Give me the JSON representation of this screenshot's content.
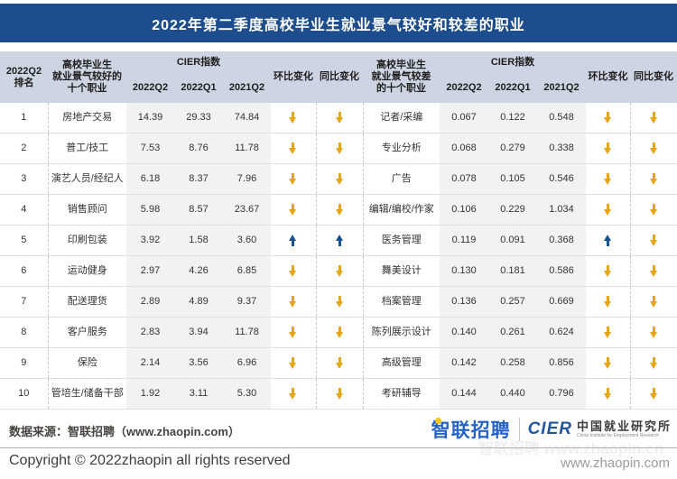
{
  "colors": {
    "title-bar-bg": "#1D4D8C",
    "header-bg": "#CDD5E3",
    "stripe-bg": "#F2F2F2",
    "row-border": "#E0E0E0",
    "dashed-border": "#C8C8C8",
    "arrow-down": "#E4A61A",
    "arrow-up": "#17518F",
    "logo-blue": "#2563C9",
    "logo-yellow": "#F5C518",
    "cier-blue": "#2456A0",
    "text-dark": "#333333",
    "text-gray": "#9B9B9B"
  },
  "chart_data": {
    "type": "table",
    "title": "2022年第二季度高校毕业生就业景气较好和较差的职业",
    "header": {
      "rank_label": "2022Q2\n排名",
      "good_occupation_label": "高校毕业生\n就业景气较好的\n十个职业",
      "bad_occupation_label": "高校毕业生\n就业景气较差\n的十个职业",
      "cier_index_label": "CIER指数",
      "quarter_cols": [
        "2022Q2",
        "2022Q1",
        "2021Q2"
      ],
      "mom_label": "环比变化",
      "yoy_label": "同比变化"
    },
    "rows": [
      {
        "rank": "1",
        "good": {
          "name": "房地产交易",
          "cier": [
            "14.39",
            "29.33",
            "74.84"
          ],
          "mom": "down",
          "yoy": "down"
        },
        "bad": {
          "name": "记者/采编",
          "cier": [
            "0.067",
            "0.122",
            "0.548"
          ],
          "mom": "down",
          "yoy": "down"
        }
      },
      {
        "rank": "2",
        "good": {
          "name": "普工/技工",
          "cier": [
            "7.53",
            "8.76",
            "11.78"
          ],
          "mom": "down",
          "yoy": "down"
        },
        "bad": {
          "name": "专业分析",
          "cier": [
            "0.068",
            "0.279",
            "0.338"
          ],
          "mom": "down",
          "yoy": "down"
        }
      },
      {
        "rank": "3",
        "good": {
          "name": "演艺人员/经纪人",
          "cier": [
            "6.18",
            "8.37",
            "7.96"
          ],
          "mom": "down",
          "yoy": "down"
        },
        "bad": {
          "name": "广告",
          "cier": [
            "0.078",
            "0.105",
            "0.546"
          ],
          "mom": "down",
          "yoy": "down"
        }
      },
      {
        "rank": "4",
        "good": {
          "name": "销售顾问",
          "cier": [
            "5.98",
            "8.57",
            "23.67"
          ],
          "mom": "down",
          "yoy": "down"
        },
        "bad": {
          "name": "编辑/编校/作家",
          "cier": [
            "0.106",
            "0.229",
            "1.034"
          ],
          "mom": "down",
          "yoy": "down"
        }
      },
      {
        "rank": "5",
        "good": {
          "name": "印刷包装",
          "cier": [
            "3.92",
            "1.58",
            "3.60"
          ],
          "mom": "up",
          "yoy": "up"
        },
        "bad": {
          "name": "医务管理",
          "cier": [
            "0.119",
            "0.091",
            "0.368"
          ],
          "mom": "up",
          "yoy": "down"
        }
      },
      {
        "rank": "6",
        "good": {
          "name": "运动健身",
          "cier": [
            "2.97",
            "4.26",
            "6.85"
          ],
          "mom": "down",
          "yoy": "down"
        },
        "bad": {
          "name": "舞美设计",
          "cier": [
            "0.130",
            "0.181",
            "0.586"
          ],
          "mom": "down",
          "yoy": "down"
        }
      },
      {
        "rank": "7",
        "good": {
          "name": "配送理货",
          "cier": [
            "2.89",
            "4.89",
            "9.37"
          ],
          "mom": "down",
          "yoy": "down"
        },
        "bad": {
          "name": "档案管理",
          "cier": [
            "0.136",
            "0.257",
            "0.669"
          ],
          "mom": "down",
          "yoy": "down"
        }
      },
      {
        "rank": "8",
        "good": {
          "name": "客户服务",
          "cier": [
            "2.83",
            "3.94",
            "11.78"
          ],
          "mom": "down",
          "yoy": "down"
        },
        "bad": {
          "name": "陈列展示设计",
          "cier": [
            "0.140",
            "0.261",
            "0.624"
          ],
          "mom": "down",
          "yoy": "down"
        }
      },
      {
        "rank": "9",
        "good": {
          "name": "保险",
          "cier": [
            "2.14",
            "3.56",
            "6.96"
          ],
          "mom": "down",
          "yoy": "down"
        },
        "bad": {
          "name": "高级管理",
          "cier": [
            "0.142",
            "0.258",
            "0.856"
          ],
          "mom": "down",
          "yoy": "down"
        }
      },
      {
        "rank": "10",
        "good": {
          "name": "管培生/储备干部",
          "cier": [
            "1.92",
            "3.11",
            "5.30"
          ],
          "mom": "down",
          "yoy": "down"
        },
        "bad": {
          "name": "考研辅导",
          "cier": [
            "0.144",
            "0.440",
            "0.796"
          ],
          "mom": "down",
          "yoy": "down"
        }
      }
    ]
  },
  "footer": {
    "data_source": "数据来源：智联招聘（www.zhaopin.com）",
    "zhaopin_logo_text": "智联招聘",
    "cier_logo_text": "CIER",
    "cier_cn": "中国就业研究所",
    "cier_en": "China Institute for Employment Research",
    "copyright": "Copyright © 2022zhaopin all rights reserved",
    "site_url": "www.zhaopin.com",
    "watermark": "智联招聘 www.zhaopin.cn"
  }
}
